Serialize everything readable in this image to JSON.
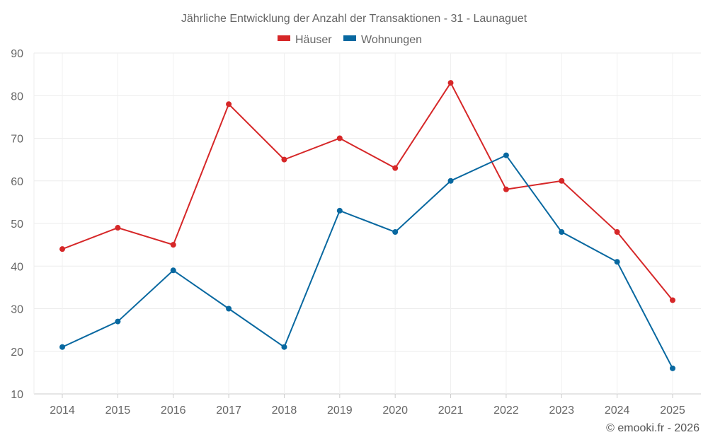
{
  "chart_data": {
    "type": "line",
    "title": "Jährliche Entwicklung der Anzahl der Transaktionen - 31 - Launaguet",
    "xlabel": "",
    "ylabel": "",
    "categories": [
      "2014",
      "2015",
      "2016",
      "2017",
      "2018",
      "2019",
      "2020",
      "2021",
      "2022",
      "2023",
      "2024",
      "2025"
    ],
    "ylim": [
      10,
      90
    ],
    "yticks": [
      10,
      20,
      30,
      40,
      50,
      60,
      70,
      80,
      90
    ],
    "grid": true,
    "legend_position": "top-center",
    "series": [
      {
        "name": "Häuser",
        "color": "#d62728",
        "values": [
          44,
          49,
          45,
          78,
          65,
          70,
          63,
          83,
          58,
          60,
          48,
          32
        ]
      },
      {
        "name": "Wohnungen",
        "color": "#0868a0",
        "values": [
          21,
          27,
          39,
          30,
          21,
          53,
          48,
          60,
          66,
          48,
          41,
          16
        ]
      }
    ]
  },
  "footer": {
    "copyright": "© emooki.fr - 2026"
  }
}
